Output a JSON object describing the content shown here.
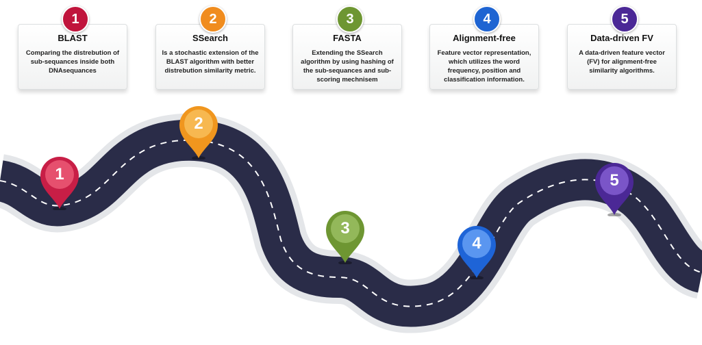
{
  "steps": [
    {
      "number": "1",
      "title": "BLAST",
      "description": "Comparing the distrebution of sub-sequances inside both DNAsequances",
      "color": "#c0143c"
    },
    {
      "number": "2",
      "title": "SSearch",
      "description": "Is a stochastic extension of the BLAST algorithm with better distrebution similarity metric.",
      "color": "#f08c1e"
    },
    {
      "number": "3",
      "title": "FASTA",
      "description": "Extending the SSearch algorithm by using hashing of the sub-sequances and sub-scoring mechnisem",
      "color": "#6e9632"
    },
    {
      "number": "4",
      "title": "Alignment-free",
      "description": "Feature vector representation, which utilizes the word frequency, position and classification information.",
      "color": "#1e64d2"
    },
    {
      "number": "5",
      "title": "Data-driven FV",
      "description": "A data-driven feature vector (FV) for alignment-free similarity algorithms.",
      "color": "#4b2896"
    }
  ],
  "pins": [
    {
      "number": "1",
      "color": "#c81e46",
      "light": "#e6506e"
    },
    {
      "number": "2",
      "color": "#f0961e",
      "light": "#f7b850"
    },
    {
      "number": "3",
      "color": "#6e9632",
      "light": "#93b85a"
    },
    {
      "number": "4",
      "color": "#1e64d7",
      "light": "#5a96f0"
    },
    {
      "number": "5",
      "color": "#4b2896",
      "light": "#7a55c8"
    }
  ],
  "road": {
    "color": "#2a2c48",
    "edge": "#e4e6e9",
    "dash": "#ffffff"
  }
}
